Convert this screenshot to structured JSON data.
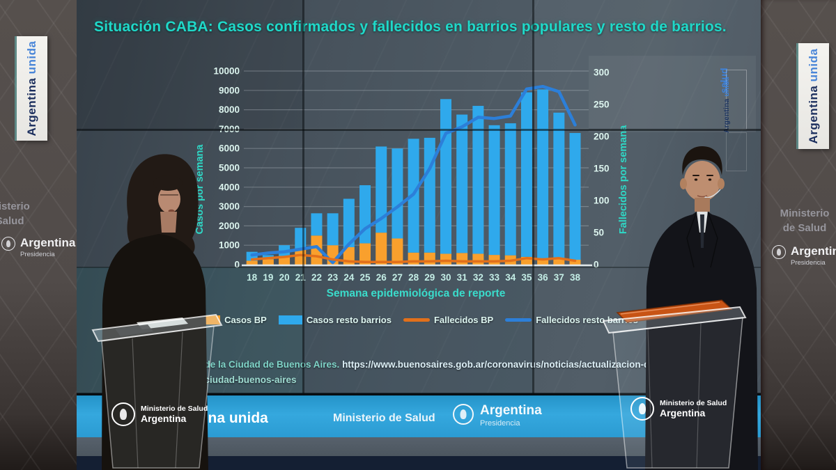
{
  "slide": {
    "title": "Situación CABA: Casos confirmados  y fallecidos en barrios populares y resto de barrios.",
    "edge_salud": "salud",
    "edge_badge_argentina": "Argentina",
    "edge_badge_unida": "unida",
    "source_prefix": "Salud de la Ciudad de Buenos Aires. ",
    "source_url": "https://www.buenosaires.gob.ar/coronavirus/noticias/actualizacion-de",
    "source_line2": "-en-la-ciudad-buenos-aires"
  },
  "chart_data": {
    "type": "combo_stacked_bar_line",
    "x_label": "Semana epidemiológica de reporte",
    "x": [
      18,
      19,
      20,
      21,
      22,
      23,
      24,
      25,
      26,
      27,
      28,
      29,
      30,
      31,
      32,
      33,
      34,
      35,
      36,
      37,
      38
    ],
    "left_axis": {
      "title": "Casos por semana",
      "min": 0,
      "max": 10000,
      "step": 1000
    },
    "right_axis": {
      "title": "Fallecidos por semana",
      "min": 0,
      "max": 300,
      "step": 50
    },
    "stacked_bars": true,
    "legend_position": "bottom",
    "series": [
      {
        "name": "Casos BP",
        "type": "bar",
        "axis": "left",
        "color": "#F9A02D",
        "values": [
          200,
          280,
          450,
          800,
          1500,
          1000,
          900,
          1100,
          1650,
          1350,
          620,
          620,
          560,
          600,
          560,
          500,
          480,
          400,
          330,
          300,
          250
        ]
      },
      {
        "name": "Casos resto barrios",
        "type": "bar",
        "axis": "left",
        "color": "#2FA9EC",
        "values": [
          460,
          210,
          550,
          1100,
          1150,
          1650,
          2500,
          3000,
          4450,
          4650,
          5880,
          5930,
          7990,
          7150,
          7640,
          6700,
          6820,
          8500,
          8720,
          7550,
          6550
        ]
      },
      {
        "name": "Fallecidos BP",
        "type": "line",
        "axis": "right",
        "color": "#E2701B",
        "values": [
          8,
          10,
          12,
          15,
          13,
          8,
          5,
          4,
          4,
          4,
          5,
          5,
          6,
          5,
          5,
          5,
          6,
          10,
          8,
          10,
          6
        ]
      },
      {
        "name": "Fallecidos resto barrios",
        "type": "line",
        "axis": "right",
        "color": "#2C7FD9",
        "values": [
          15,
          18,
          20,
          24,
          28,
          3,
          32,
          56,
          72,
          90,
          110,
          150,
          205,
          215,
          230,
          228,
          232,
          274,
          278,
          270,
          218
        ]
      }
    ]
  },
  "wall_left": {
    "badge_argentina": "Argentina",
    "badge_unida": "unida",
    "ministry1": "Ministerio",
    "ministry2": "de Salud",
    "brand": "Argentina",
    "brand_sub": "Presidencia"
  },
  "wall_right": {
    "badge_argentina": "Argentina",
    "badge_unida": "unida",
    "ministry1": "Ministerio",
    "ministry2": "de Salud",
    "brand": "Argentina",
    "brand_sub": "Presidencia"
  },
  "bottom_band": {
    "argentina": "Argentina",
    "unida": "unida",
    "ministerio": "Ministerio de Salud",
    "brand": "Argentina",
    "brand_sub": "Presidencia"
  },
  "podium": {
    "ministry": "Ministerio de Salud",
    "country": "Argentina"
  },
  "colors": {
    "title_teal": "#1FD9C9",
    "band_blue": "#2E9FD6",
    "screen_bg": "#47525C"
  }
}
